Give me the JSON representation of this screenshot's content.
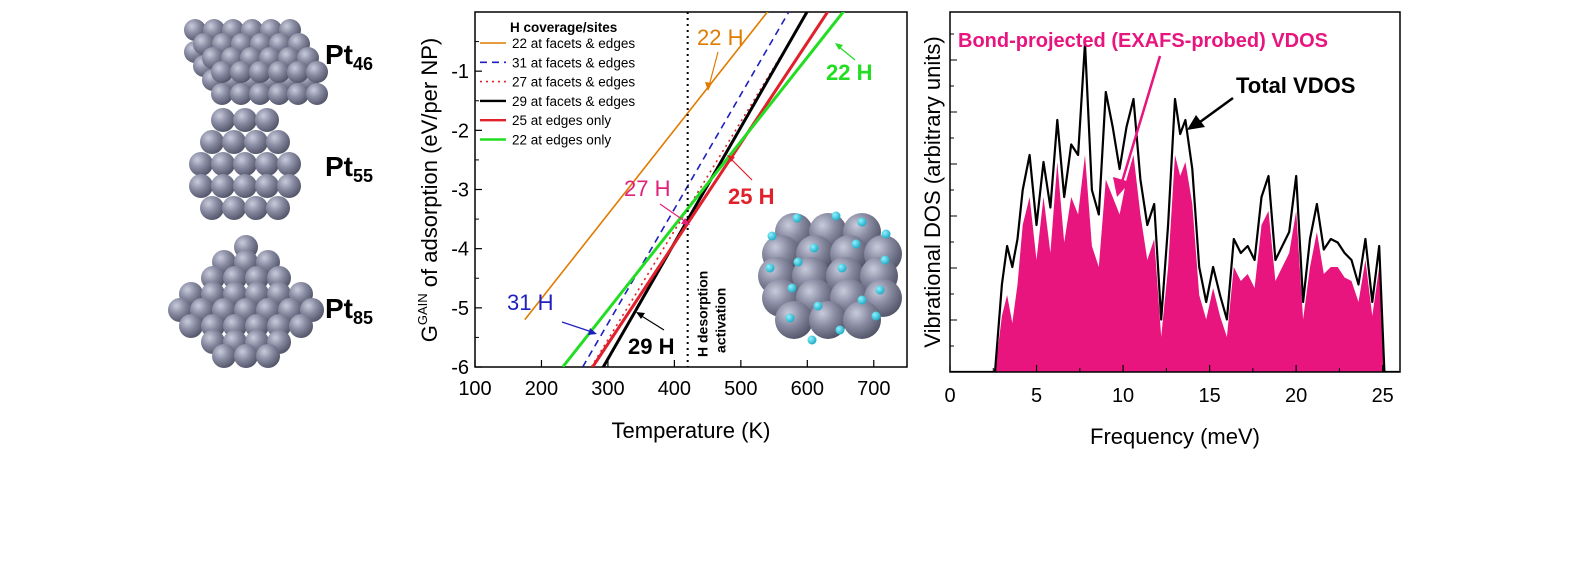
{
  "structures": {
    "labels": [
      {
        "base": "Pt",
        "sub": "46"
      },
      {
        "base": "Pt",
        "sub": "55"
      },
      {
        "base": "Pt",
        "sub": "85"
      }
    ],
    "sphere_color": "#7d7f96"
  },
  "chart_data": [
    {
      "type": "line",
      "xlabel": "Temperature (K)",
      "ylabel_main": "G",
      "ylabel_sup": "GAIN",
      "ylabel_rest": " of adsorption (eV/per NP)",
      "xlim": [
        100,
        750
      ],
      "ylim": [
        -6,
        0
      ],
      "xticks": [
        100,
        200,
        300,
        400,
        500,
        600,
        700
      ],
      "yticks": [
        -1,
        -2,
        -3,
        -4,
        -5,
        -6
      ],
      "legend_title": "H coverage/sites",
      "legend_position": "top-left",
      "series": [
        {
          "name": "22 at facets & edges",
          "color": "#e07b00",
          "dash": "solid",
          "width": 1.6,
          "x": [
            175,
            575
          ],
          "y": [
            -5.2,
            0.5
          ]
        },
        {
          "name": "31 at facets & edges",
          "color": "#1f1fbf",
          "dash": "dashed",
          "width": 1.6,
          "x": [
            262,
            585
          ],
          "y": [
            -6,
            0.25
          ]
        },
        {
          "name": "27 at facets & edges",
          "color": "#e0202a",
          "dash": "dotted",
          "width": 1.6,
          "x": [
            275,
            625
          ],
          "y": [
            -6,
            0.45
          ]
        },
        {
          "name": "29 at facets & edges",
          "color": "#000000",
          "dash": "solid",
          "width": 3,
          "x": [
            293,
            625
          ],
          "y": [
            -6,
            0.5
          ]
        },
        {
          "name": "25 at edges only",
          "color": "#e0202a",
          "dash": "solid",
          "width": 3,
          "x": [
            277,
            660
          ],
          "y": [
            -6,
            0.5
          ]
        },
        {
          "name": "22 at edges only",
          "color": "#22dd22",
          "dash": "solid",
          "width": 3,
          "x": [
            232,
            675
          ],
          "y": [
            -6,
            0.3
          ]
        }
      ],
      "vline": {
        "x": 420,
        "label_line1": "H desorption",
        "label_line2": "activation"
      },
      "annotations": [
        {
          "text": "22 H",
          "color": "#e07b00",
          "bold": false
        },
        {
          "text": "22 H",
          "color": "#22dd22",
          "bold": true
        },
        {
          "text": "27 H",
          "color": "#e0207a",
          "bold": false
        },
        {
          "text": "25 H",
          "color": "#e0202a",
          "bold": true
        },
        {
          "text": "31 H",
          "color": "#1f1fbf",
          "bold": false
        },
        {
          "text": "29 H",
          "color": "#000000",
          "bold": true
        }
      ]
    },
    {
      "type": "area",
      "xlabel": "Frequency (meV)",
      "ylabel": "Vibrational DOS (arbitrary units)",
      "xlim": [
        0,
        26
      ],
      "xticks": [
        0,
        5,
        10,
        15,
        20,
        25
      ],
      "ylim": [
        0,
        1
      ],
      "series": [
        {
          "name": "Total VDOS",
          "type": "line",
          "color": "#000000",
          "x": [
            0,
            2.6,
            3.0,
            3.3,
            3.6,
            3.9,
            4.2,
            4.6,
            5.0,
            5.4,
            5.8,
            6.2,
            6.6,
            7.0,
            7.4,
            7.8,
            8.2,
            8.6,
            9.0,
            9.4,
            9.8,
            10.2,
            10.6,
            11.0,
            11.4,
            11.8,
            12.2,
            12.6,
            13.0,
            13.3,
            13.6,
            14.0,
            14.4,
            14.8,
            15.2,
            15.6,
            16.0,
            16.4,
            16.8,
            17.2,
            17.6,
            18.0,
            18.4,
            18.8,
            19.2,
            19.6,
            20.0,
            20.4,
            20.8,
            21.2,
            21.6,
            22.0,
            22.4,
            22.8,
            23.2,
            23.6,
            24.0,
            24.4,
            24.8,
            25.1,
            25.5,
            26
          ],
          "y": [
            0,
            0,
            0.25,
            0.36,
            0.3,
            0.38,
            0.52,
            0.62,
            0.42,
            0.6,
            0.47,
            0.72,
            0.5,
            0.65,
            0.62,
            0.94,
            0.52,
            0.45,
            0.8,
            0.7,
            0.58,
            0.7,
            0.78,
            0.55,
            0.42,
            0.48,
            0.15,
            0.42,
            0.78,
            0.68,
            0.72,
            0.58,
            0.3,
            0.2,
            0.3,
            0.22,
            0.15,
            0.38,
            0.34,
            0.36,
            0.32,
            0.5,
            0.56,
            0.32,
            0.36,
            0.4,
            0.56,
            0.2,
            0.38,
            0.48,
            0.35,
            0.38,
            0.37,
            0.34,
            0.32,
            0.25,
            0.38,
            0.2,
            0.36,
            0.0,
            0,
            0
          ]
        },
        {
          "name": "Bond-projected (EXAFS-probed) VDOS",
          "type": "area",
          "color": "#e8157f",
          "x": [
            0,
            2.6,
            3.0,
            3.3,
            3.6,
            3.9,
            4.2,
            4.6,
            5.0,
            5.4,
            5.8,
            6.2,
            6.6,
            7.0,
            7.4,
            7.8,
            8.2,
            8.6,
            9.0,
            9.4,
            9.8,
            10.2,
            10.6,
            11.0,
            11.4,
            11.8,
            12.2,
            12.6,
            13.0,
            13.3,
            13.6,
            14.0,
            14.4,
            14.8,
            15.2,
            15.6,
            16.0,
            16.4,
            16.8,
            17.2,
            17.6,
            18.0,
            18.4,
            18.8,
            19.2,
            19.6,
            20.0,
            20.4,
            20.8,
            21.2,
            21.6,
            22.0,
            22.4,
            22.8,
            23.2,
            23.6,
            24.0,
            24.4,
            24.8,
            25.1,
            25.5,
            26
          ],
          "y": [
            0,
            0,
            0.16,
            0.22,
            0.14,
            0.25,
            0.42,
            0.5,
            0.32,
            0.5,
            0.34,
            0.6,
            0.37,
            0.5,
            0.45,
            0.62,
            0.36,
            0.3,
            0.55,
            0.5,
            0.45,
            0.55,
            0.62,
            0.45,
            0.32,
            0.38,
            0.1,
            0.3,
            0.62,
            0.56,
            0.6,
            0.48,
            0.22,
            0.15,
            0.24,
            0.16,
            0.1,
            0.3,
            0.26,
            0.28,
            0.24,
            0.42,
            0.46,
            0.26,
            0.3,
            0.34,
            0.46,
            0.15,
            0.3,
            0.4,
            0.28,
            0.3,
            0.3,
            0.27,
            0.26,
            0.2,
            0.32,
            0.16,
            0.3,
            0.0,
            0,
            0
          ]
        }
      ],
      "annotations": [
        {
          "text": "Bond-projected (EXAFS-probed) VDOS",
          "color": "#e8157f",
          "bold": true
        },
        {
          "text": "Total VDOS",
          "color": "#000000",
          "bold": true
        }
      ]
    }
  ]
}
